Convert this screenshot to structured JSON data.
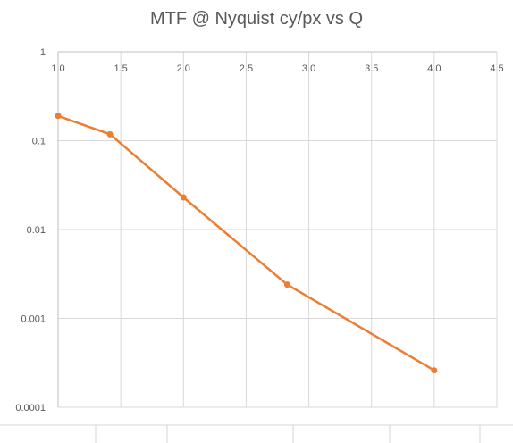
{
  "chart_data": {
    "type": "line",
    "title": "MTF @ Nyquist cy/px vs Q",
    "xlabel": "",
    "ylabel": "",
    "x_scale": "linear",
    "y_scale": "log",
    "xlim": [
      1.0,
      4.5
    ],
    "ylim": [
      0.0001,
      1
    ],
    "x_ticks": [
      "1.0",
      "1.5",
      "2.0",
      "2.5",
      "3.0",
      "3.5",
      "4.0",
      "4.5"
    ],
    "y_ticks": [
      "1",
      "0.1",
      "0.01",
      "0.001",
      "0.0001"
    ],
    "x_tick_position": "top",
    "grid": true,
    "legend": "none",
    "series": [
      {
        "color": "#ED7D31",
        "x": [
          1.0,
          1.414,
          2.0,
          2.828,
          4.0
        ],
        "y": [
          0.19,
          0.118,
          0.023,
          0.0024,
          0.00026
        ]
      }
    ]
  }
}
